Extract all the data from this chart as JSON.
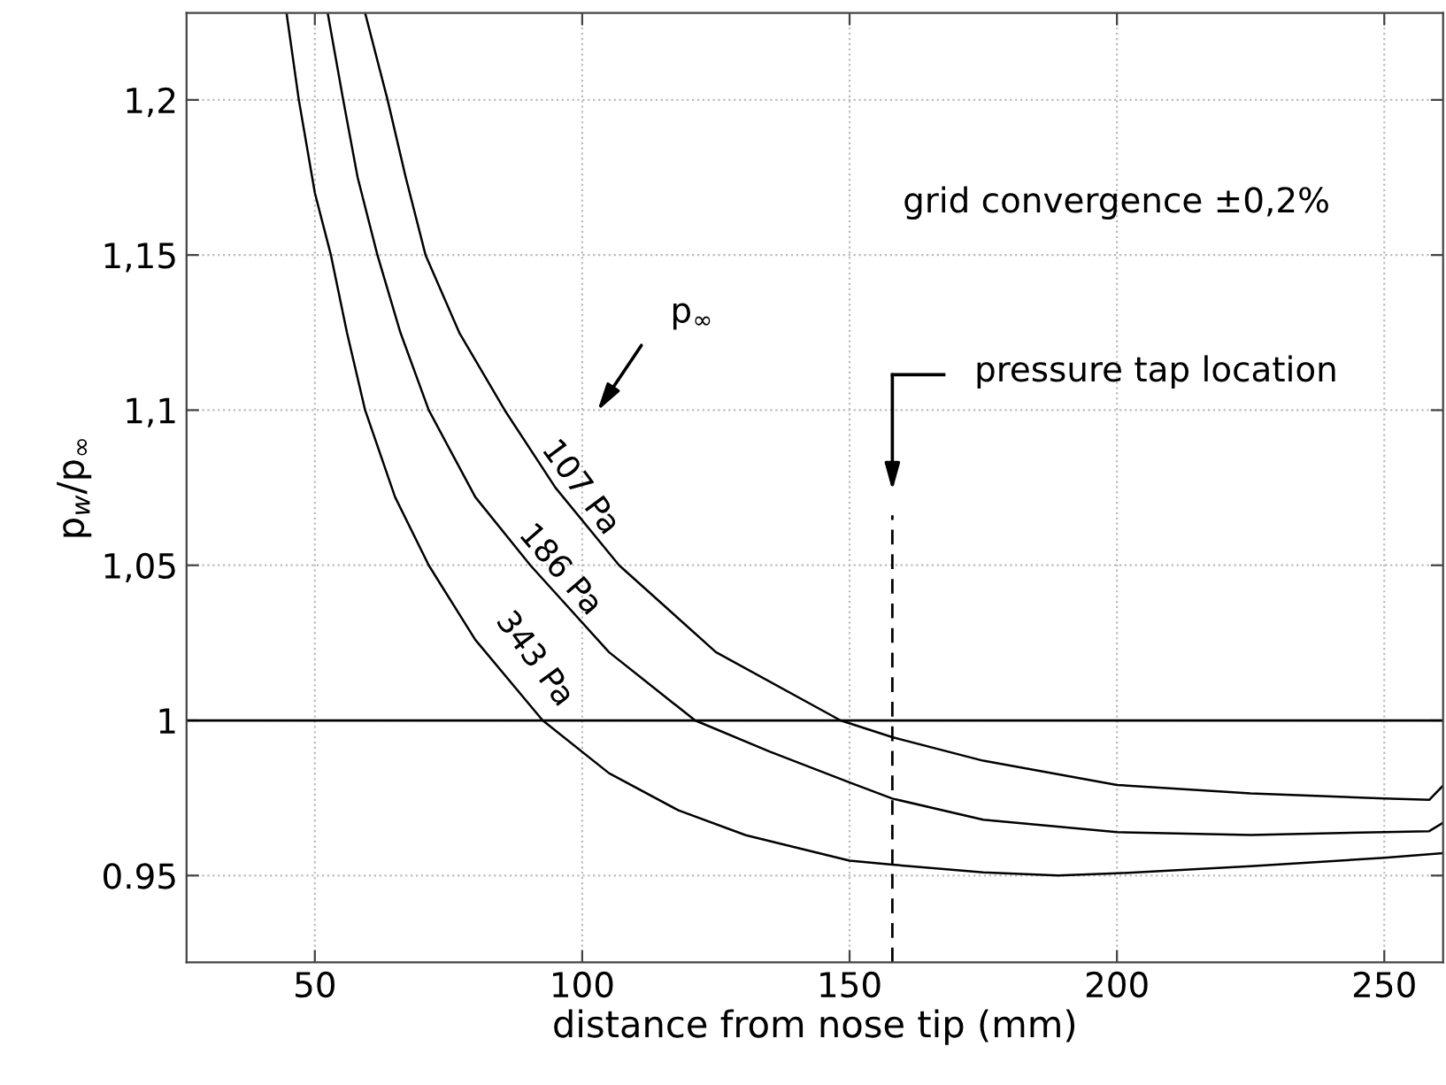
{
  "chart_data": {
    "type": "line",
    "xlabel": "distance from nose tip (mm)",
    "ylabel": "p$_{w}$/p$_{∞}$",
    "xlim": [
      26,
      261
    ],
    "ylim": [
      0.922,
      1.228
    ],
    "xticks": [
      50,
      100,
      150,
      200,
      250
    ],
    "yticks": [
      {
        "value": 0.95,
        "label": "0.95"
      },
      {
        "value": 1,
        "label": "1"
      },
      {
        "value": 1.05,
        "label": "1,05"
      },
      {
        "value": 1.1,
        "label": "1,1"
      },
      {
        "value": 1.15,
        "label": "1,15"
      },
      {
        "value": 1.2,
        "label": "1,2"
      }
    ],
    "grid": true,
    "marker": "none",
    "line_style": "solid",
    "series": [
      {
        "name": "107 Pa",
        "color": "#000000",
        "x": [
          59.4,
          63.6,
          67,
          70.7,
          77,
          85.5,
          95,
          106.9,
          125,
          148.3,
          158,
          175,
          200,
          225,
          250,
          258.4,
          261
        ],
        "values": [
          1.228,
          1.2,
          1.175,
          1.15,
          1.125,
          1.1,
          1.075,
          1.05,
          1.022,
          1.0,
          0.9946,
          0.987,
          0.9792,
          0.9765,
          0.9748,
          0.9744,
          0.979
        ]
      },
      {
        "name": "186 Pa",
        "color": "#000000",
        "x": [
          52.4,
          55.3,
          58,
          61.7,
          66,
          71.3,
          80,
          90.3,
          105,
          121.1,
          135,
          150,
          158,
          175,
          200,
          225,
          250,
          258.4,
          261
        ],
        "values": [
          1.228,
          1.2,
          1.175,
          1.15,
          1.125,
          1.1,
          1.072,
          1.05,
          1.022,
          1.0,
          0.99,
          0.98,
          0.9748,
          0.968,
          0.964,
          0.9631,
          0.964,
          0.9643,
          0.967
        ]
      },
      {
        "name": "343 Pa",
        "color": "#000000",
        "x": [
          44.7,
          47,
          50,
          53,
          56,
          59.4,
          65,
          71.3,
          80,
          92.6,
          105,
          118,
          130.6,
          150,
          158,
          175,
          189,
          200,
          225,
          250,
          261
        ],
        "values": [
          1.228,
          1.2,
          1.17,
          1.15,
          1.125,
          1.1,
          1.072,
          1.05,
          1.026,
          1.0,
          0.983,
          0.971,
          0.963,
          0.9548,
          0.9535,
          0.951,
          0.95,
          0.9507,
          0.953,
          0.9557,
          0.9572
        ]
      }
    ],
    "ref_lines": [
      {
        "axis": "y",
        "value": 1,
        "color": "#000000",
        "line_style": "solid"
      },
      {
        "axis": "x",
        "value": 158,
        "color": "#000000",
        "line_style": "dashed"
      }
    ],
    "annotations": [
      "p$_{∞}$",
      "grid convergence ±0,2%",
      "pressure tap location"
    ]
  }
}
